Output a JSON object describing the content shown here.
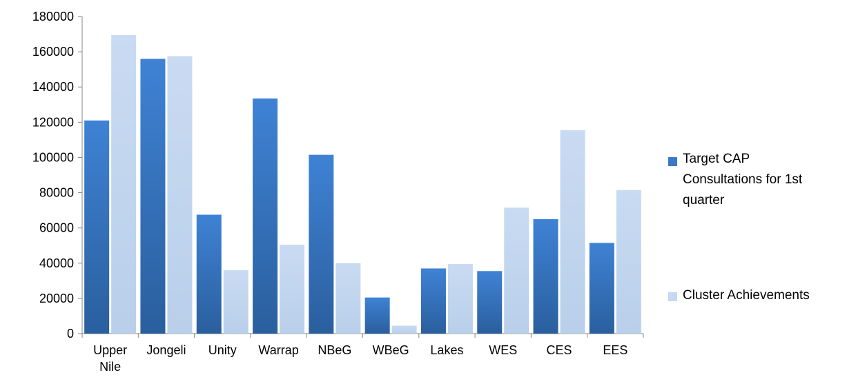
{
  "chart_data": {
    "type": "bar",
    "title": "",
    "xlabel": "",
    "ylabel": "",
    "ylim": [
      0,
      180000
    ],
    "yticks": [
      0,
      20000,
      40000,
      60000,
      80000,
      100000,
      120000,
      140000,
      160000,
      180000
    ],
    "grid": false,
    "legend_position": "right",
    "categories": [
      [
        "Upper",
        "Nile"
      ],
      [
        "Jongeli"
      ],
      [
        "Unity"
      ],
      [
        "Warrap"
      ],
      [
        "NBeG"
      ],
      [
        "WBeG"
      ],
      [
        "Lakes"
      ],
      [
        "WES"
      ],
      [
        "CES"
      ],
      [
        "EES"
      ]
    ],
    "series": [
      {
        "name": [
          "Target CAP",
          "Consultations for 1st",
          "quarter"
        ],
        "color": "#3a78c8",
        "values": [
          121000,
          156000,
          67500,
          133500,
          101500,
          20500,
          37000,
          35500,
          65000,
          51500
        ]
      },
      {
        "name": [
          "Cluster Achievements"
        ],
        "color": "#c6d9f1",
        "values": [
          169500,
          157500,
          36000,
          50500,
          40000,
          4500,
          39500,
          71500,
          115500,
          81500
        ]
      }
    ]
  }
}
